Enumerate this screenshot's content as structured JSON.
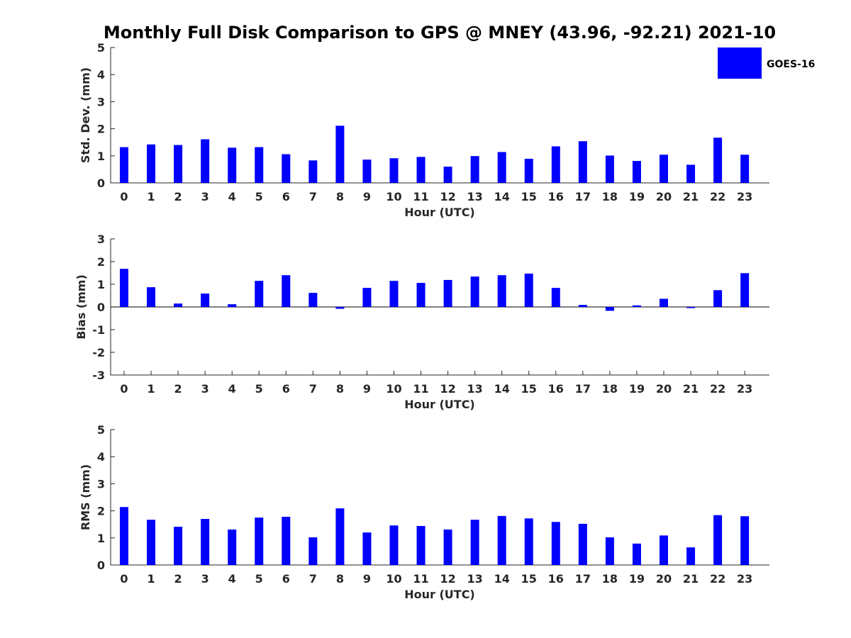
{
  "title": "Monthly Full Disk Comparison to GPS @ MNEY (43.96, -92.21) 2021-10",
  "legend": {
    "label": "GOES-16",
    "color": "#0000ff",
    "placement": "top-right"
  },
  "chart_data": [
    {
      "type": "bar",
      "xlabel": "Hour (UTC)",
      "ylabel": "Std. Dev. (mm)",
      "ylim": [
        0,
        5
      ],
      "yticks": [
        "0",
        "1",
        "2",
        "3",
        "4",
        "5"
      ],
      "categories": [
        "0",
        "1",
        "2",
        "3",
        "4",
        "5",
        "6",
        "7",
        "8",
        "9",
        "10",
        "11",
        "12",
        "13",
        "14",
        "15",
        "16",
        "17",
        "18",
        "19",
        "20",
        "21",
        "22",
        "23"
      ],
      "series": [
        {
          "name": "GOES-16",
          "color": "#0000ff",
          "values": [
            1.32,
            1.42,
            1.4,
            1.61,
            1.3,
            1.32,
            1.06,
            0.83,
            2.11,
            0.86,
            0.91,
            0.96,
            0.6,
            0.99,
            1.14,
            0.89,
            1.35,
            1.54,
            1.01,
            0.81,
            1.04,
            0.67,
            1.67,
            1.04
          ]
        }
      ]
    },
    {
      "type": "bar",
      "xlabel": "Hour (UTC)",
      "ylabel": "Bias (mm)",
      "ylim": [
        -3,
        3
      ],
      "yticks": [
        "-3",
        "-2",
        "-1",
        "0",
        "1",
        "2",
        "3"
      ],
      "categories": [
        "0",
        "1",
        "2",
        "3",
        "4",
        "5",
        "6",
        "7",
        "8",
        "9",
        "10",
        "11",
        "12",
        "13",
        "14",
        "15",
        "16",
        "17",
        "18",
        "19",
        "20",
        "21",
        "22",
        "23"
      ],
      "series": [
        {
          "name": "GOES-16",
          "color": "#0000ff",
          "values": [
            1.68,
            0.87,
            0.15,
            0.59,
            0.12,
            1.15,
            1.4,
            0.62,
            -0.08,
            0.84,
            1.15,
            1.06,
            1.19,
            1.34,
            1.4,
            1.47,
            0.84,
            0.09,
            -0.17,
            0.07,
            0.36,
            -0.05,
            0.74,
            1.49
          ]
        }
      ]
    },
    {
      "type": "bar",
      "xlabel": "Hour (UTC)",
      "ylabel": "RMS (mm)",
      "ylim": [
        0,
        5
      ],
      "yticks": [
        "0",
        "1",
        "2",
        "3",
        "4",
        "5"
      ],
      "categories": [
        "0",
        "1",
        "2",
        "3",
        "4",
        "5",
        "6",
        "7",
        "8",
        "9",
        "10",
        "11",
        "12",
        "13",
        "14",
        "15",
        "16",
        "17",
        "18",
        "19",
        "20",
        "21",
        "22",
        "23"
      ],
      "series": [
        {
          "name": "GOES-16",
          "color": "#0000ff",
          "values": [
            2.14,
            1.67,
            1.41,
            1.7,
            1.31,
            1.75,
            1.78,
            1.02,
            2.09,
            1.2,
            1.46,
            1.44,
            1.31,
            1.67,
            1.81,
            1.72,
            1.59,
            1.52,
            1.02,
            0.79,
            1.09,
            0.65,
            1.84,
            1.8
          ]
        }
      ]
    }
  ]
}
